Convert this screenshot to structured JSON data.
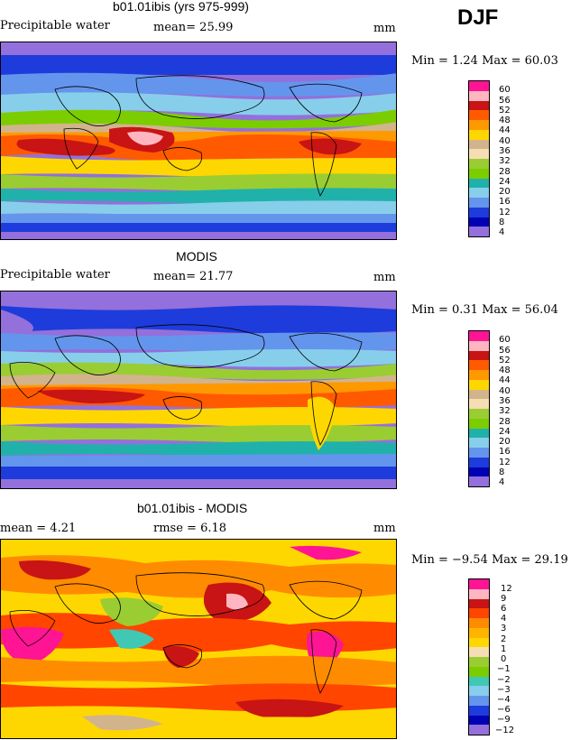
{
  "season": "DJF",
  "panels": [
    {
      "title": "b01.01ibis (yrs 975-999)",
      "variable": "Precipitable water",
      "stat_line": "mean=  25.99",
      "units": "mm",
      "minmax": "Min =    1.24 Max =   60.03",
      "kind": "field",
      "levels": [
        "60",
        "56",
        "52",
        "48",
        "44",
        "40",
        "36",
        "32",
        "28",
        "24",
        "20",
        "16",
        "12",
        "8",
        "4"
      ]
    },
    {
      "title": "MODIS",
      "variable": "Precipitable water",
      "stat_line": "mean=  21.77",
      "units": "mm",
      "minmax": "Min =    0.31 Max =   56.04",
      "kind": "field",
      "levels": [
        "60",
        "56",
        "52",
        "48",
        "44",
        "40",
        "36",
        "32",
        "28",
        "24",
        "20",
        "16",
        "12",
        "8",
        "4"
      ]
    },
    {
      "title": "b01.01ibis - MODIS",
      "stat_left": "mean =    4.21",
      "stat_mid": "rmse =    6.18",
      "units": "mm",
      "minmax": "Min =  −9.54 Max =   29.19",
      "kind": "diff",
      "levels": [
        "12",
        "9",
        "6",
        "4",
        "3",
        "2",
        "1",
        "0",
        "−1",
        "−2",
        "−3",
        "−4",
        "−6",
        "−9",
        "−12"
      ]
    }
  ],
  "colors": {
    "field": [
      "#ff1493",
      "#ffb6c1",
      "#c81414",
      "#ff5a00",
      "#ff9900",
      "#ffd700",
      "#d2b48c",
      "#f5deb3",
      "#9acd32",
      "#7ccd00",
      "#20b2aa",
      "#87ceeb",
      "#6495ed",
      "#1e3cdc",
      "#0000b4",
      "#9370db"
    ],
    "diff": [
      "#ff1493",
      "#ffb6c1",
      "#c81414",
      "#ff4500",
      "#ff8c00",
      "#ffb400",
      "#ffd700",
      "#f5deb3",
      "#9acd32",
      "#7ccd00",
      "#40c8b4",
      "#87ceeb",
      "#6495ed",
      "#1e3cdc",
      "#0000b4",
      "#9370db"
    ]
  }
}
